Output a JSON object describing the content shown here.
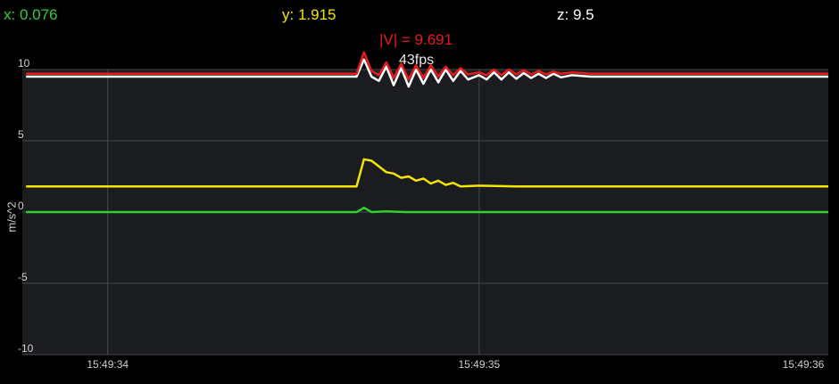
{
  "readouts": {
    "x": {
      "label": "x: 0.076",
      "color": "#2fd12f"
    },
    "y": {
      "label": "y: 1.915",
      "color": "#f2e600"
    },
    "z": {
      "label": "z: 9.5",
      "color": "#ffffff"
    },
    "magnitude": {
      "label": "|V| = 9.691",
      "color": "#e81a1a"
    }
  },
  "fps_label": "43fps",
  "chart_data": {
    "type": "line",
    "ylabel": "m/s^2",
    "ylim": [
      -10,
      10
    ],
    "y_ticks": [
      {
        "value": 10,
        "label": "10"
      },
      {
        "value": 5,
        "label": "5"
      },
      {
        "value": 0,
        "label": "0"
      },
      {
        "value": -5,
        "label": "-5"
      },
      {
        "value": -10,
        "label": "-10"
      }
    ],
    "xlim": [
      33.77,
      35.94
    ],
    "x_ticks": [
      {
        "value": 34,
        "label": "15:49:34"
      },
      {
        "value": 35,
        "label": "15:49:35"
      },
      {
        "value": 36,
        "label": "15:49:36"
      }
    ],
    "grid": true,
    "background": "#1b1c20",
    "series": [
      {
        "color": "#2fd12f",
        "points": [
          [
            33.78,
            0.0
          ],
          [
            34.0,
            0.0
          ],
          [
            34.5,
            0.0
          ],
          [
            34.67,
            0.0
          ],
          [
            34.69,
            0.3
          ],
          [
            34.71,
            0.0
          ],
          [
            34.75,
            0.05
          ],
          [
            34.8,
            0.0
          ],
          [
            35.0,
            0.0
          ],
          [
            35.5,
            0.0
          ],
          [
            35.94,
            0.0
          ]
        ]
      },
      {
        "color": "#f2e600",
        "points": [
          [
            33.78,
            1.8
          ],
          [
            34.0,
            1.8
          ],
          [
            34.5,
            1.8
          ],
          [
            34.67,
            1.8
          ],
          [
            34.69,
            3.7
          ],
          [
            34.71,
            3.6
          ],
          [
            34.73,
            3.2
          ],
          [
            34.75,
            2.8
          ],
          [
            34.77,
            2.7
          ],
          [
            34.79,
            2.4
          ],
          [
            34.81,
            2.5
          ],
          [
            34.83,
            2.2
          ],
          [
            34.85,
            2.35
          ],
          [
            34.87,
            2.0
          ],
          [
            34.89,
            2.2
          ],
          [
            34.91,
            1.9
          ],
          [
            34.93,
            2.05
          ],
          [
            34.95,
            1.8
          ],
          [
            35.0,
            1.85
          ],
          [
            35.1,
            1.8
          ],
          [
            35.5,
            1.8
          ],
          [
            35.94,
            1.8
          ]
        ]
      },
      {
        "color": "#ffffff",
        "points": [
          [
            33.78,
            9.5
          ],
          [
            34.0,
            9.5
          ],
          [
            34.5,
            9.5
          ],
          [
            34.67,
            9.5
          ],
          [
            34.69,
            10.7
          ],
          [
            34.71,
            9.5
          ],
          [
            34.73,
            9.2
          ],
          [
            34.75,
            10.2
          ],
          [
            34.77,
            8.9
          ],
          [
            34.79,
            10.1
          ],
          [
            34.81,
            8.8
          ],
          [
            34.83,
            10.0
          ],
          [
            34.85,
            9.0
          ],
          [
            34.87,
            10.0
          ],
          [
            34.89,
            9.1
          ],
          [
            34.91,
            10.0
          ],
          [
            34.93,
            9.2
          ],
          [
            34.95,
            9.9
          ],
          [
            34.97,
            9.3
          ],
          [
            35.0,
            9.6
          ],
          [
            35.02,
            9.3
          ],
          [
            35.04,
            9.8
          ],
          [
            35.06,
            9.3
          ],
          [
            35.08,
            9.8
          ],
          [
            35.1,
            9.35
          ],
          [
            35.12,
            9.75
          ],
          [
            35.14,
            9.4
          ],
          [
            35.16,
            9.7
          ],
          [
            35.18,
            9.4
          ],
          [
            35.2,
            9.7
          ],
          [
            35.22,
            9.45
          ],
          [
            35.25,
            9.6
          ],
          [
            35.3,
            9.5
          ],
          [
            35.94,
            9.5
          ]
        ]
      },
      {
        "color": "#e81a1a",
        "points": [
          [
            33.78,
            9.7
          ],
          [
            34.0,
            9.7
          ],
          [
            34.5,
            9.7
          ],
          [
            34.67,
            9.7
          ],
          [
            34.69,
            11.2
          ],
          [
            34.71,
            9.9
          ],
          [
            34.73,
            9.6
          ],
          [
            34.75,
            10.5
          ],
          [
            34.77,
            9.4
          ],
          [
            34.79,
            10.4
          ],
          [
            34.81,
            9.3
          ],
          [
            34.83,
            10.3
          ],
          [
            34.85,
            9.4
          ],
          [
            34.87,
            10.3
          ],
          [
            34.89,
            9.5
          ],
          [
            34.91,
            10.2
          ],
          [
            34.93,
            9.6
          ],
          [
            34.95,
            10.1
          ],
          [
            34.97,
            9.65
          ],
          [
            35.0,
            9.8
          ],
          [
            35.02,
            9.6
          ],
          [
            35.04,
            10.0
          ],
          [
            35.06,
            9.6
          ],
          [
            35.08,
            10.0
          ],
          [
            35.1,
            9.65
          ],
          [
            35.12,
            9.95
          ],
          [
            35.14,
            9.65
          ],
          [
            35.16,
            9.9
          ],
          [
            35.18,
            9.65
          ],
          [
            35.2,
            9.85
          ],
          [
            35.22,
            9.7
          ],
          [
            35.25,
            9.8
          ],
          [
            35.3,
            9.7
          ],
          [
            35.94,
            9.7
          ]
        ]
      }
    ]
  }
}
